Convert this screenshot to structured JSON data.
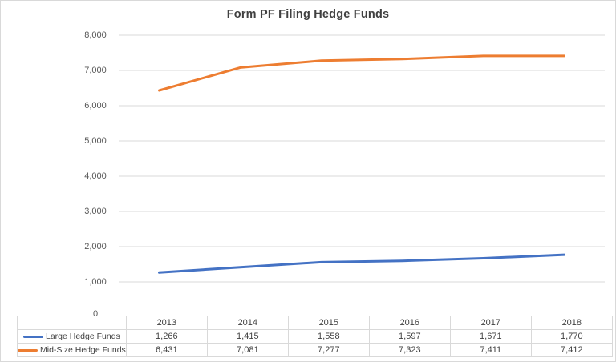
{
  "chart_data": {
    "type": "line",
    "title": "Form PF Filing Hedge Funds",
    "categories": [
      "2013",
      "2014",
      "2015",
      "2016",
      "2017",
      "2018"
    ],
    "series": [
      {
        "name": "Large Hedge Funds",
        "color": "#4472C4",
        "values": [
          1266,
          1415,
          1558,
          1597,
          1671,
          1770
        ],
        "values_formatted": [
          "1,266",
          "1,415",
          "1,558",
          "1,597",
          "1,671",
          "1,770"
        ]
      },
      {
        "name": "Mid-Size Hedge Funds",
        "color": "#ED7D31",
        "values": [
          6431,
          7081,
          7277,
          7323,
          7411,
          7412
        ],
        "values_formatted": [
          "6,431",
          "7,081",
          "7,277",
          "7,323",
          "7,411",
          "7,412"
        ]
      }
    ],
    "xlabel": "",
    "ylabel": "",
    "ylim": [
      0,
      8000
    ],
    "y_tick_interval": 1000,
    "y_ticks": [
      "0",
      "1,000",
      "2,000",
      "3,000",
      "4,000",
      "5,000",
      "6,000",
      "7,000",
      "8,000"
    ],
    "grid": "horizontal",
    "legend_position": "data-table-left",
    "colors": {
      "gridline": "#d9d9d9",
      "axis_label": "#595959",
      "title": "#404040",
      "table_border": "#d9d9d9",
      "table_text": "#404040"
    }
  }
}
